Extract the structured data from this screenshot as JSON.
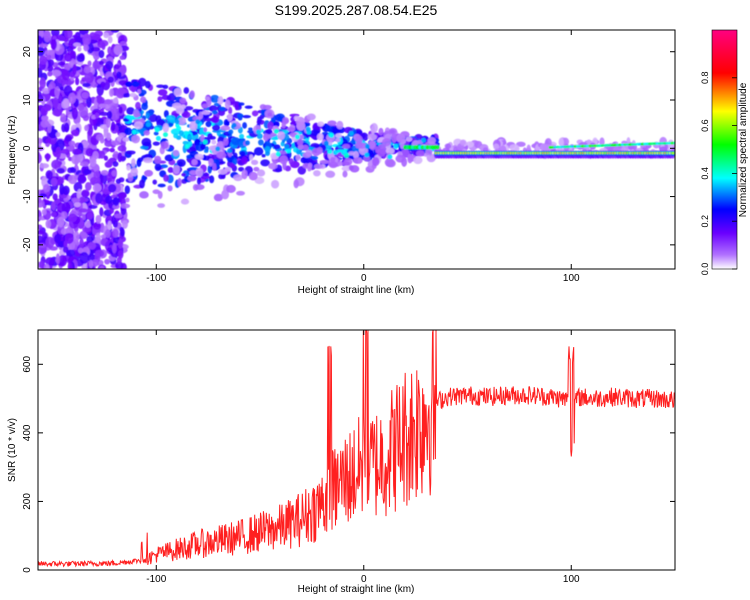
{
  "title": "S199.2025.287.08.54.E25",
  "chart_data": [
    {
      "type": "heatmap",
      "title": "S199.2025.287.08.54.E25",
      "xlabel": "Height of straight line (km)",
      "ylabel": "Frequency (Hz)",
      "xlim": [
        -157,
        150
      ],
      "ylim": [
        -25,
        24.5
      ],
      "xticks": [
        -100,
        0,
        100
      ],
      "yticks": [
        -20,
        -10,
        0,
        10,
        20
      ],
      "colorbar": {
        "label": "Normalized spectral amplitude",
        "ticks": [
          "0.0",
          "0.2",
          "0.4",
          "0.6",
          "0.8"
        ],
        "tick_values": [
          0.0,
          0.2,
          0.4,
          0.6,
          0.8
        ],
        "range": [
          0,
          1
        ],
        "colors": [
          "#ffffff",
          "#8c00ff",
          "#0000ff",
          "#00ffff",
          "#00ff00",
          "#ffff00",
          "#ff0000",
          "#ff0080"
        ]
      },
      "description_features": {
        "noise_region_x": [
          -157,
          -115
        ],
        "main_band_freq_hz": 0,
        "strong_band_x": [
          35,
          150
        ]
      }
    },
    {
      "type": "line",
      "title": "",
      "xlabel": "Height of straight line (km)",
      "ylabel": "SNR (10 * v/v)",
      "xlim": [
        -157,
        150
      ],
      "ylim": [
        0,
        700
      ],
      "xticks": [
        -100,
        0,
        100
      ],
      "yticks": [
        0,
        200,
        400,
        600
      ],
      "series": [
        {
          "name": "SNR",
          "color": "#ff2020",
          "x": [
            -157,
            -140,
            -120,
            -105,
            -100,
            -90,
            -80,
            -70,
            -60,
            -50,
            -40,
            -30,
            -25,
            -20,
            -15,
            -10,
            -5,
            0,
            5,
            10,
            15,
            20,
            25,
            30,
            35,
            40,
            50,
            60,
            70,
            80,
            90,
            95,
            100,
            105,
            110,
            120,
            130,
            140,
            150
          ],
          "values": [
            18,
            18,
            20,
            30,
            45,
            60,
            75,
            85,
            95,
            110,
            125,
            150,
            170,
            195,
            230,
            260,
            280,
            300,
            310,
            330,
            360,
            390,
            420,
            460,
            490,
            505,
            510,
            505,
            510,
            510,
            505,
            500,
            495,
            505,
            500,
            505,
            500,
            500,
            495
          ]
        }
      ],
      "annotations": [
        "spikes near x=-17",
        "spikes near x=0 reaching top",
        "dip near x=100"
      ]
    }
  ]
}
